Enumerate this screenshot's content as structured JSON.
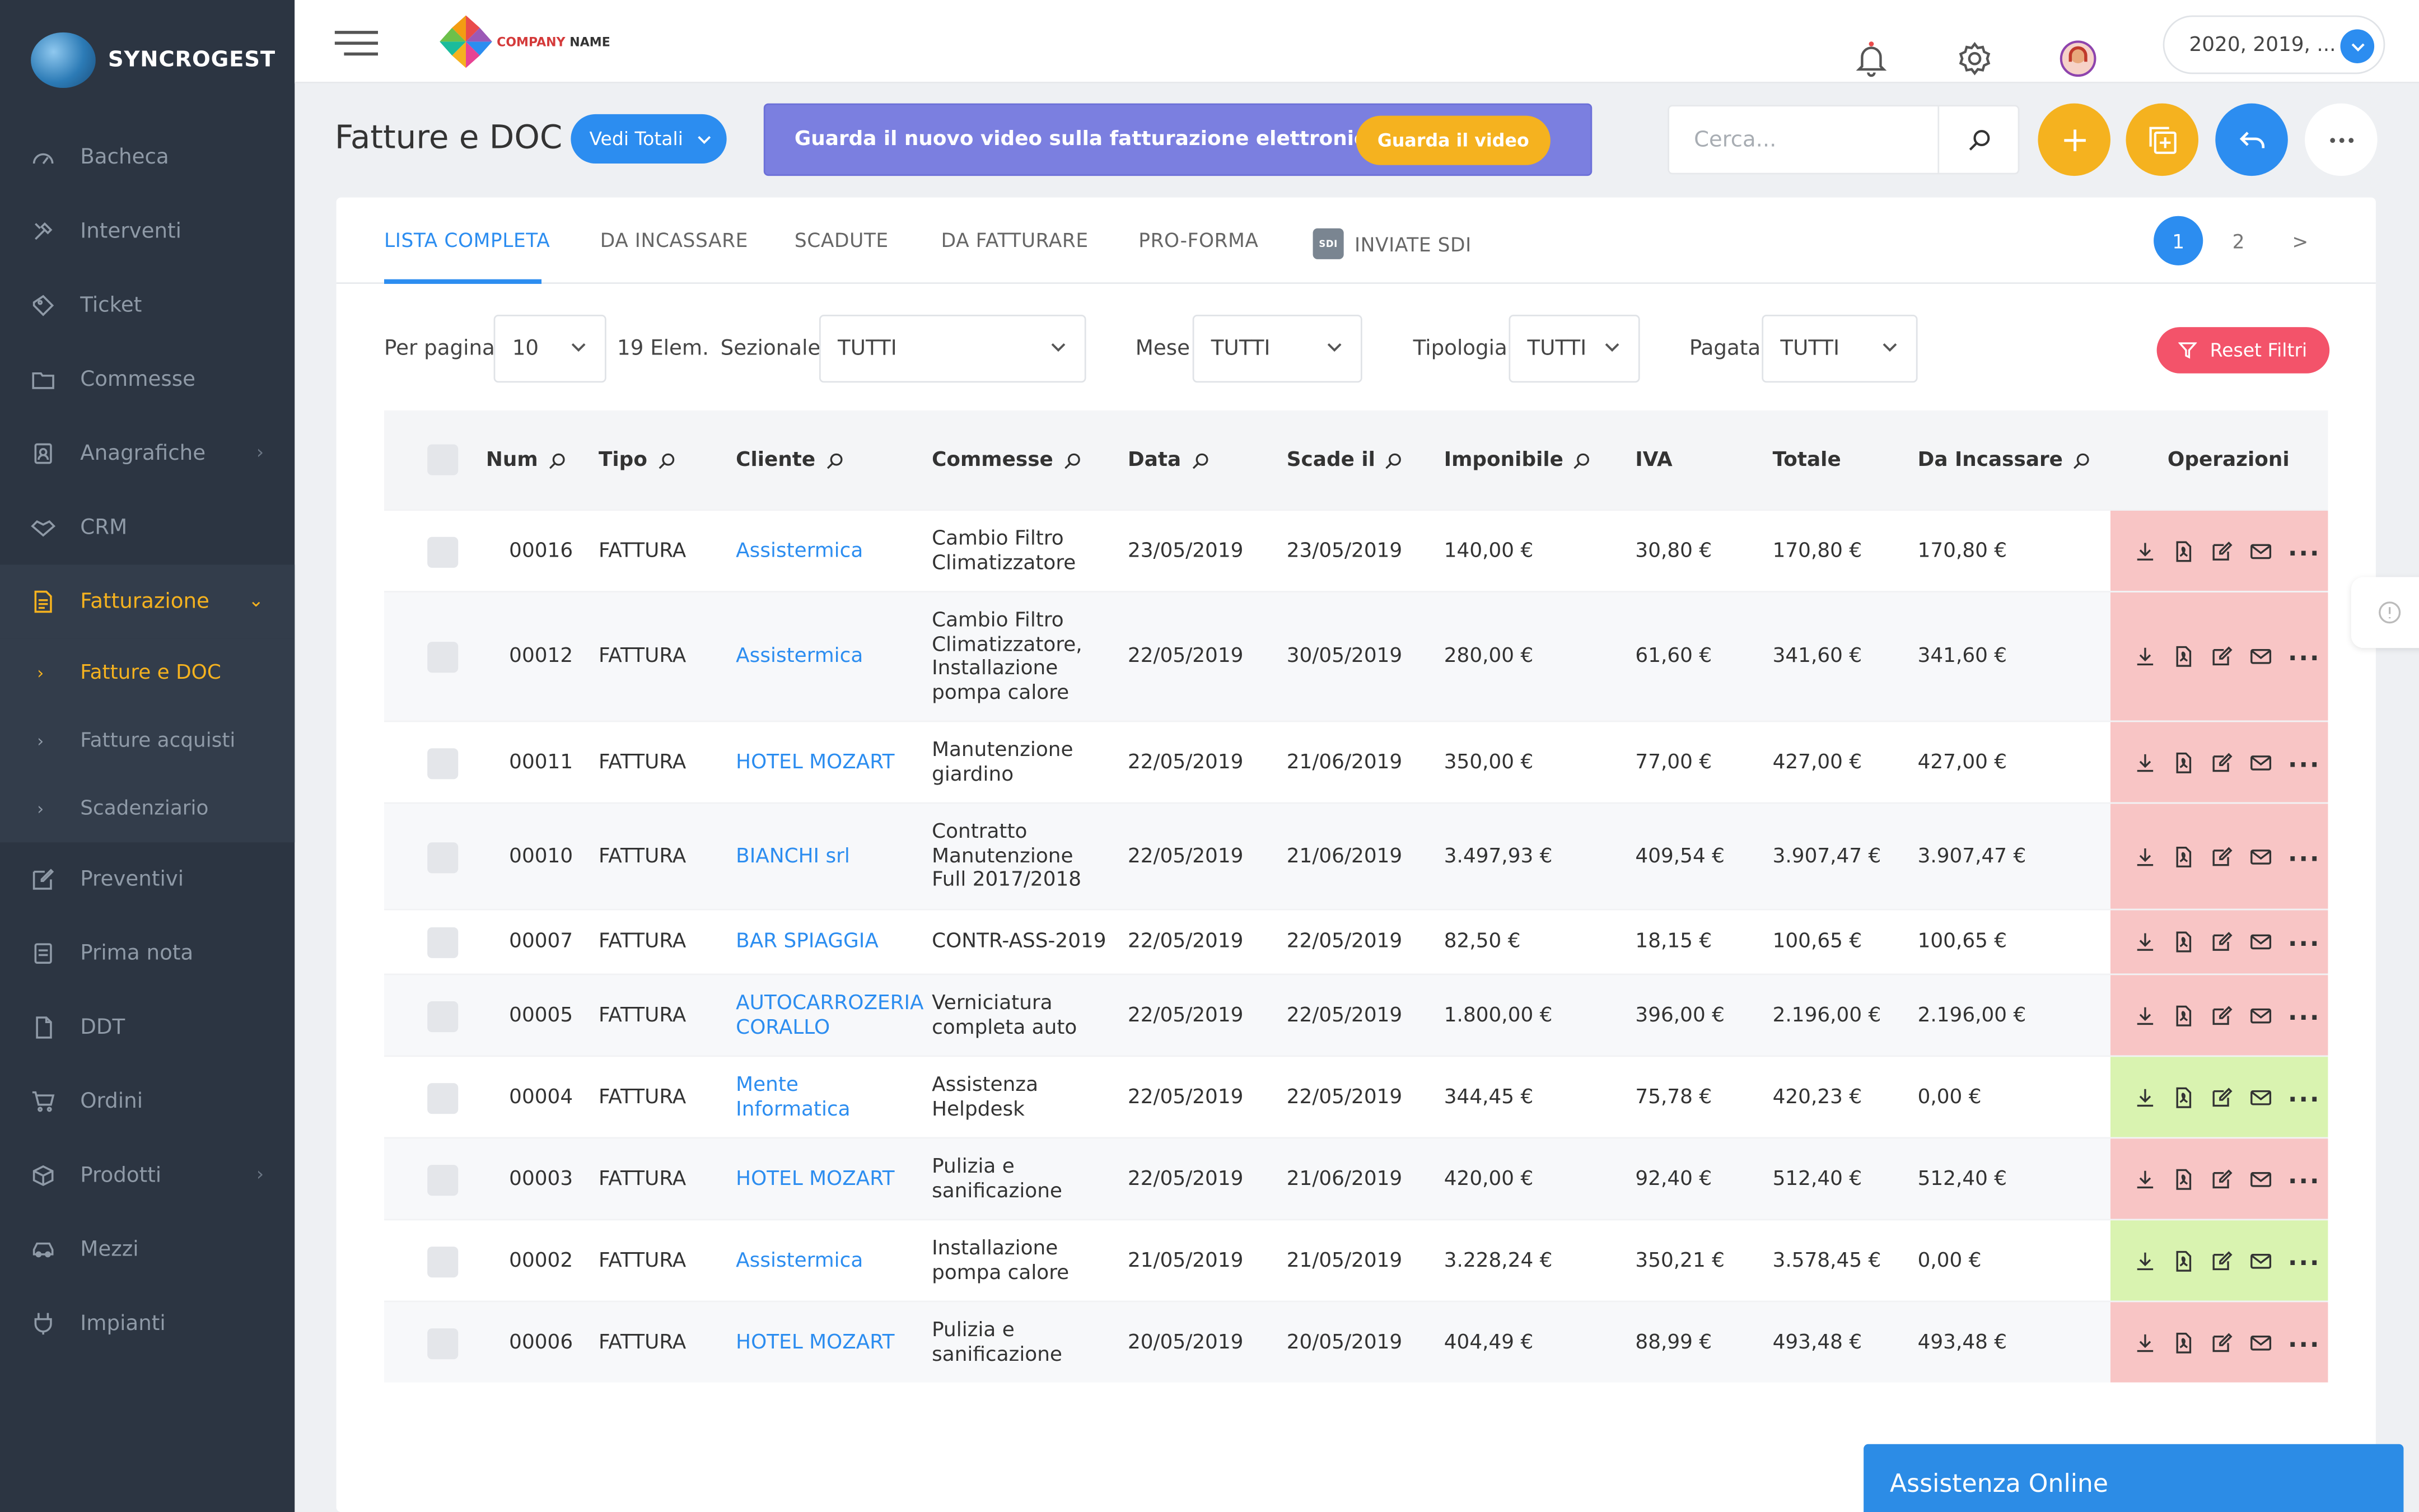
{
  "brand": {
    "name": "SYNCROGEST",
    "company_logo_text_a": "COMPANY",
    "company_logo_text_b": " NAME"
  },
  "sidebar": {
    "items": [
      {
        "label": "Bacheca",
        "icon": "dashboard-icon"
      },
      {
        "label": "Interventi",
        "icon": "tools-icon"
      },
      {
        "label": "Ticket",
        "icon": "ticket-icon"
      },
      {
        "label": "Commesse",
        "icon": "folder-icon"
      },
      {
        "label": "Anagrafiche",
        "icon": "contacts-icon"
      },
      {
        "label": "CRM",
        "icon": "handshake-icon"
      },
      {
        "label": "Fatturazione",
        "icon": "invoice-icon"
      },
      {
        "label": "Preventivi",
        "icon": "edit-icon"
      },
      {
        "label": "Prima nota",
        "icon": "note-icon"
      },
      {
        "label": "DDT",
        "icon": "document-icon"
      },
      {
        "label": "Ordini",
        "icon": "cart-icon"
      },
      {
        "label": "Prodotti",
        "icon": "box-icon"
      },
      {
        "label": "Mezzi",
        "icon": "car-icon"
      },
      {
        "label": "Impianti",
        "icon": "plug-icon"
      }
    ],
    "sub_items": [
      {
        "label": "Fatture e DOC"
      },
      {
        "label": "Fatture acquisti"
      },
      {
        "label": "Scadenziario"
      }
    ]
  },
  "topbar": {
    "year_selector": "2020, 2019, ..."
  },
  "header": {
    "title": "Fatture e DOC",
    "totals_button": "Vedi Totali",
    "banner_text": "Guarda il nuovo video sulla fatturazione elettronica!",
    "banner_button": "Guarda il video",
    "search_placeholder": "Cerca..."
  },
  "tabs": [
    {
      "label": "LISTA COMPLETA"
    },
    {
      "label": "DA INCASSARE"
    },
    {
      "label": "SCADUTE"
    },
    {
      "label": "DA FATTURARE"
    },
    {
      "label": "PRO-FORMA"
    },
    {
      "label": "INVIATE SDI"
    }
  ],
  "sdi_badge": "SDI",
  "pagination": [
    "1",
    "2",
    ">"
  ],
  "filters": {
    "per_page_label": "Per pagina",
    "per_page_value": "10",
    "count": "19 Elem.",
    "sezionale_label": "Sezionale",
    "sezionale_value": "TUTTI",
    "mese_label": "Mese",
    "mese_value": "TUTTI",
    "tipologia_label": "Tipologia",
    "tipologia_value": "TUTTI",
    "pagata_label": "Pagata",
    "pagata_value": "TUTTI",
    "reset_label": "Reset Filtri"
  },
  "table": {
    "columns": [
      "Num",
      "Tipo",
      "Cliente",
      "Commesse",
      "Data",
      "Scade il",
      "Imponibile",
      "IVA",
      "Totale",
      "Da Incassare",
      "Operazioni"
    ],
    "rows": [
      {
        "num": "00016",
        "tipo": "FATTURA",
        "cliente": "Assistermica",
        "commesse": "Cambio Filtro\nClimatizzatore",
        "data": "23/05/2019",
        "scade": "23/05/2019",
        "imponibile": "140,00 €",
        "iva": "30,80 €",
        "totale": "170,80 €",
        "incassare": "170,80 €",
        "status_color": "#f8c5c5"
      },
      {
        "num": "00012",
        "tipo": "FATTURA",
        "cliente": "Assistermica",
        "commesse": "Cambio Filtro\nClimatizzatore,\nInstallazione\npompa calore",
        "data": "22/05/2019",
        "scade": "30/05/2019",
        "imponibile": "280,00 €",
        "iva": "61,60 €",
        "totale": "341,60 €",
        "incassare": "341,60 €",
        "status_color": "#f8c5c5"
      },
      {
        "num": "00011",
        "tipo": "FATTURA",
        "cliente": "HOTEL MOZART",
        "commesse": "Manutenzione\ngiardino",
        "data": "22/05/2019",
        "scade": "21/06/2019",
        "imponibile": "350,00 €",
        "iva": "77,00 €",
        "totale": "427,00 €",
        "incassare": "427,00 €",
        "status_color": "#f8c5c5"
      },
      {
        "num": "00010",
        "tipo": "FATTURA",
        "cliente": "BIANCHI srl",
        "commesse": "Contratto\nManutenzione\nFull 2017/2018",
        "data": "22/05/2019",
        "scade": "21/06/2019",
        "imponibile": "3.497,93 €",
        "iva": "409,54 €",
        "totale": "3.907,47 €",
        "incassare": "3.907,47 €",
        "status_color": "#f8c5c5"
      },
      {
        "num": "00007",
        "tipo": "FATTURA",
        "cliente": "BAR SPIAGGIA",
        "commesse": "CONTR-ASS-2019",
        "data": "22/05/2019",
        "scade": "22/05/2019",
        "imponibile": "82,50 €",
        "iva": "18,15 €",
        "totale": "100,65 €",
        "incassare": "100,65 €",
        "status_color": "#f8c5c5"
      },
      {
        "num": "00005",
        "tipo": "FATTURA",
        "cliente": "AUTOCARROZERIA\nCORALLO",
        "commesse": "Verniciatura\ncompleta auto",
        "data": "22/05/2019",
        "scade": "22/05/2019",
        "imponibile": "1.800,00 €",
        "iva": "396,00 €",
        "totale": "2.196,00 €",
        "incassare": "2.196,00 €",
        "status_color": "#f8c5c5"
      },
      {
        "num": "00004",
        "tipo": "FATTURA",
        "cliente": "Mente\nInformatica",
        "commesse": "Assistenza\nHelpdesk",
        "data": "22/05/2019",
        "scade": "22/05/2019",
        "imponibile": "344,45 €",
        "iva": "75,78 €",
        "totale": "420,23 €",
        "incassare": "0,00 €",
        "status_color": "#d9f3b0"
      },
      {
        "num": "00003",
        "tipo": "FATTURA",
        "cliente": "HOTEL MOZART",
        "commesse": "Pulizia e\nsanificazione",
        "data": "22/05/2019",
        "scade": "21/06/2019",
        "imponibile": "420,00 €",
        "iva": "92,40 €",
        "totale": "512,40 €",
        "incassare": "512,40 €",
        "status_color": "#f8c5c5"
      },
      {
        "num": "00002",
        "tipo": "FATTURA",
        "cliente": "Assistermica",
        "commesse": "Installazione\npompa calore",
        "data": "21/05/2019",
        "scade": "21/05/2019",
        "imponibile": "3.228,24 €",
        "iva": "350,21 €",
        "totale": "3.578,45 €",
        "incassare": "0,00 €",
        "status_color": "#d9f3b0"
      },
      {
        "num": "00006",
        "tipo": "FATTURA",
        "cliente": "HOTEL MOZART",
        "commesse": "Pulizia e\nsanificazione",
        "data": "20/05/2019",
        "scade": "20/05/2019",
        "imponibile": "404,49 €",
        "iva": "88,99 €",
        "totale": "493,48 €",
        "incassare": "493,48 €",
        "status_color": "#f8c5c5"
      }
    ]
  },
  "assist_label": "Assistenza Online",
  "colors": {
    "accent": "#2c8df0",
    "sidebar_bg": "#2c3542",
    "active_yellow": "#f5b21f",
    "reset_red": "#f3536a",
    "banner": "#7b7fe0",
    "overdue_row": "#f8c5c5",
    "paid_row": "#d9f3b0"
  }
}
